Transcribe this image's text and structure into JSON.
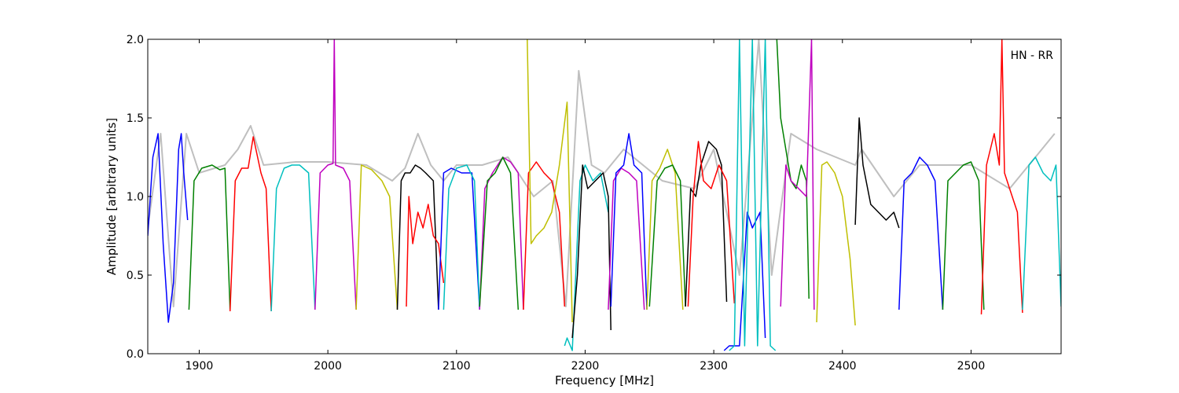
{
  "chart_data": {
    "type": "line",
    "title": "",
    "xlabel": "Frequency [MHz]",
    "ylabel": "Amplitude [arbitrary units]",
    "xlim": [
      1860,
      2570
    ],
    "ylim": [
      0.0,
      2.0
    ],
    "xticks": [
      1900,
      2000,
      2100,
      2200,
      2300,
      2400,
      2500
    ],
    "xtick_labels": [
      "1900",
      "2000",
      "2100",
      "2200",
      "2300",
      "2400",
      "2500"
    ],
    "yticks": [
      0.0,
      0.5,
      1.0,
      1.5,
      2.0
    ],
    "ytick_labels": [
      "0.0",
      "0.5",
      "1.0",
      "1.5",
      "2.0"
    ],
    "annotation": "HN - RR",
    "grid": false,
    "background_series": {
      "color": "#bfbfbf",
      "x": [
        1860,
        1870,
        1880,
        1890,
        1900,
        1920,
        1930,
        1940,
        1950,
        1975,
        2000,
        2030,
        2050,
        2060,
        2070,
        2080,
        2090,
        2100,
        2120,
        2140,
        2160,
        2175,
        2185,
        2195,
        2205,
        2215,
        2230,
        2260,
        2285,
        2300,
        2320,
        2335,
        2345,
        2360,
        2380,
        2410,
        2415,
        2440,
        2460,
        2480,
        2500,
        2530,
        2550,
        2565
      ],
      "y": [
        0.8,
        1.4,
        0.3,
        1.4,
        1.15,
        1.2,
        1.3,
        1.45,
        1.2,
        1.22,
        1.22,
        1.2,
        1.1,
        1.18,
        1.4,
        1.2,
        1.1,
        1.2,
        1.2,
        1.25,
        1.0,
        1.1,
        0.3,
        1.8,
        1.2,
        1.15,
        1.3,
        1.1,
        1.05,
        1.3,
        0.5,
        2.0,
        0.5,
        1.4,
        1.3,
        1.2,
        1.3,
        1.0,
        1.2,
        1.2,
        1.2,
        1.05,
        1.25,
        1.4
      ]
    },
    "series": [
      {
        "color": "#0000ff",
        "x": [
          1860,
          1864,
          1868,
          1872,
          1876,
          1880,
          1884,
          1886,
          1888,
          1891
        ],
        "y": [
          0.75,
          1.25,
          1.4,
          0.7,
          0.2,
          0.45,
          1.3,
          1.4,
          1.15,
          0.85
        ]
      },
      {
        "color": "#008000",
        "x": [
          1892,
          1896,
          1902,
          1910,
          1916,
          1920,
          1924
        ],
        "y": [
          0.28,
          1.1,
          1.18,
          1.2,
          1.17,
          1.18,
          0.28
        ]
      },
      {
        "color": "#ff0000",
        "x": [
          1924,
          1928,
          1933,
          1938,
          1942,
          1948,
          1952,
          1956
        ],
        "y": [
          0.27,
          1.1,
          1.18,
          1.18,
          1.38,
          1.15,
          1.05,
          0.27
        ]
      },
      {
        "color": "#00bfbf",
        "x": [
          1956,
          1960,
          1966,
          1972,
          1978,
          1985,
          1990
        ],
        "y": [
          0.27,
          1.05,
          1.18,
          1.2,
          1.2,
          1.15,
          0.28
        ]
      },
      {
        "color": "#bf00bf",
        "x": [
          1990,
          1994,
          2000,
          2004,
          2005,
          2006,
          2012,
          2017,
          2022
        ],
        "y": [
          0.28,
          1.15,
          1.2,
          1.21,
          2.0,
          1.2,
          1.18,
          1.1,
          0.28
        ]
      },
      {
        "color": "#bfbf00",
        "x": [
          2022,
          2026,
          2034,
          2042,
          2048,
          2054
        ],
        "y": [
          0.28,
          1.2,
          1.17,
          1.1,
          1.0,
          0.28
        ]
      },
      {
        "color": "#000000",
        "x": [
          2054,
          2057,
          2060,
          2064,
          2068,
          2072,
          2076,
          2082,
          2086
        ],
        "y": [
          0.28,
          1.1,
          1.15,
          1.15,
          1.2,
          1.18,
          1.15,
          1.1,
          0.28
        ]
      },
      {
        "color": "#ff0000",
        "x": [
          2061,
          2063,
          2066,
          2070,
          2074,
          2078,
          2082,
          2086,
          2090
        ],
        "y": [
          0.3,
          1.0,
          0.7,
          0.9,
          0.8,
          0.95,
          0.75,
          0.7,
          0.45
        ]
      },
      {
        "color": "#0000ff",
        "x": [
          2086,
          2090,
          2096,
          2104,
          2112,
          2118
        ],
        "y": [
          0.28,
          1.15,
          1.18,
          1.15,
          1.15,
          0.28
        ]
      },
      {
        "color": "#00bfbf",
        "x": [
          2090,
          2094,
          2100,
          2108,
          2114,
          2118
        ],
        "y": [
          0.28,
          1.05,
          1.18,
          1.2,
          1.1,
          0.28
        ]
      },
      {
        "color": "#bf00bf",
        "x": [
          2118,
          2122,
          2128,
          2136,
          2142,
          2148,
          2152
        ],
        "y": [
          0.28,
          1.05,
          1.15,
          1.25,
          1.22,
          1.15,
          0.28
        ]
      },
      {
        "color": "#008000",
        "x": [
          2118,
          2124,
          2130,
          2136,
          2142,
          2148
        ],
        "y": [
          0.3,
          1.1,
          1.15,
          1.25,
          1.15,
          0.28
        ]
      },
      {
        "color": "#ff0000",
        "x": [
          2152,
          2156,
          2162,
          2168,
          2174,
          2180,
          2184
        ],
        "y": [
          0.28,
          1.15,
          1.22,
          1.15,
          1.1,
          0.9,
          0.3
        ]
      },
      {
        "color": "#bfbf00",
        "x": [
          2155,
          2158,
          2162,
          2168,
          2174,
          2180,
          2186,
          2190
        ],
        "y": [
          2.0,
          0.7,
          0.75,
          0.8,
          0.9,
          1.2,
          1.6,
          0.2
        ]
      },
      {
        "color": "#00bfbf",
        "x": [
          2184,
          2186,
          2190,
          2196,
          2200,
          2206,
          2212,
          2218
        ],
        "y": [
          0.05,
          0.1,
          0.02,
          1.1,
          1.2,
          1.1,
          1.15,
          0.9
        ]
      },
      {
        "color": "#000000",
        "x": [
          2190,
          2194,
          2198,
          2202,
          2208,
          2214,
          2218,
          2220
        ],
        "y": [
          0.1,
          0.5,
          1.2,
          1.05,
          1.1,
          1.15,
          1.0,
          0.15
        ]
      },
      {
        "color": "#bf00bf",
        "x": [
          2218,
          2222,
          2228,
          2234,
          2240,
          2246
        ],
        "y": [
          0.28,
          1.1,
          1.18,
          1.15,
          1.1,
          0.28
        ]
      },
      {
        "color": "#0000ff",
        "x": [
          2220,
          2224,
          2230,
          2234,
          2238,
          2244,
          2248
        ],
        "y": [
          0.3,
          1.15,
          1.2,
          1.4,
          1.2,
          1.15,
          0.28
        ]
      },
      {
        "color": "#bfbf00",
        "x": [
          2248,
          2252,
          2258,
          2264,
          2270,
          2276
        ],
        "y": [
          0.28,
          1.1,
          1.18,
          1.3,
          1.15,
          0.28
        ]
      },
      {
        "color": "#008000",
        "x": [
          2250,
          2256,
          2262,
          2268,
          2274,
          2278
        ],
        "y": [
          0.3,
          1.1,
          1.18,
          1.2,
          1.1,
          0.3
        ]
      },
      {
        "color": "#000000",
        "x": [
          2278,
          2282,
          2286,
          2290,
          2296,
          2302,
          2306,
          2310
        ],
        "y": [
          0.3,
          1.05,
          1.0,
          1.2,
          1.35,
          1.3,
          1.2,
          0.33
        ]
      },
      {
        "color": "#ff0000",
        "x": [
          2280,
          2284,
          2288,
          2292,
          2298,
          2304,
          2310,
          2316
        ],
        "y": [
          0.3,
          1.0,
          1.35,
          1.1,
          1.05,
          1.2,
          1.1,
          0.32
        ]
      },
      {
        "color": "#0000ff",
        "x": [
          2308,
          2312,
          2316,
          2320,
          2326,
          2330,
          2336,
          2340
        ],
        "y": [
          0.02,
          0.05,
          0.05,
          0.05,
          0.9,
          0.8,
          0.9,
          0.1
        ]
      },
      {
        "color": "#00bfbf",
        "x": [
          2312,
          2316,
          2320,
          2324,
          2330,
          2334,
          2340,
          2344,
          2348
        ],
        "y": [
          0.02,
          0.05,
          2.0,
          0.05,
          2.0,
          0.05,
          2.0,
          0.05,
          0.02
        ]
      },
      {
        "color": "#008000",
        "x": [
          2349,
          2352,
          2356,
          2360,
          2364,
          2368,
          2372,
          2374
        ],
        "y": [
          2.0,
          1.5,
          1.3,
          1.1,
          1.05,
          1.2,
          1.1,
          0.35
        ]
      },
      {
        "color": "#bf00bf",
        "x": [
          2352,
          2356,
          2360,
          2366,
          2372,
          2376,
          2378
        ],
        "y": [
          0.3,
          1.2,
          1.1,
          1.05,
          1.0,
          2.0,
          0.28
        ]
      },
      {
        "color": "#bfbf00",
        "x": [
          2380,
          2384,
          2388,
          2394,
          2400,
          2406,
          2410
        ],
        "y": [
          0.2,
          1.2,
          1.22,
          1.15,
          1.0,
          0.6,
          0.18
        ]
      },
      {
        "color": "#000000",
        "x": [
          2410,
          2413,
          2416,
          2422,
          2428,
          2434,
          2440,
          2444
        ],
        "y": [
          0.82,
          1.5,
          1.2,
          0.95,
          0.9,
          0.85,
          0.9,
          0.8
        ]
      },
      {
        "color": "#0000ff",
        "x": [
          2444,
          2448,
          2454,
          2460,
          2466,
          2472,
          2478
        ],
        "y": [
          0.28,
          1.1,
          1.15,
          1.25,
          1.2,
          1.1,
          0.28
        ]
      },
      {
        "color": "#008000",
        "x": [
          2478,
          2482,
          2488,
          2494,
          2500,
          2506,
          2510
        ],
        "y": [
          0.28,
          1.1,
          1.15,
          1.2,
          1.22,
          1.1,
          0.28
        ]
      },
      {
        "color": "#ff0000",
        "x": [
          2508,
          2512,
          2518,
          2522,
          2524,
          2526,
          2530,
          2536,
          2540
        ],
        "y": [
          0.25,
          1.2,
          1.4,
          1.2,
          2.0,
          1.15,
          1.05,
          0.9,
          0.26
        ]
      },
      {
        "color": "#00bfbf",
        "x": [
          2540,
          2545,
          2550,
          2556,
          2562,
          2566,
          2570
        ],
        "y": [
          0.28,
          1.2,
          1.25,
          1.15,
          1.1,
          1.2,
          0.3
        ]
      }
    ]
  }
}
